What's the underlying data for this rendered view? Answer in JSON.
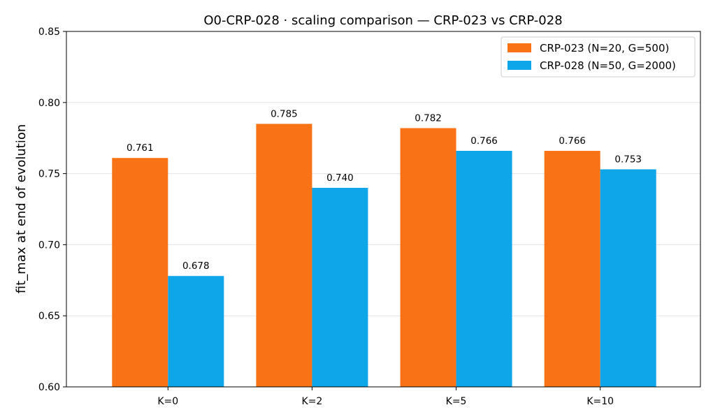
{
  "chart_data": {
    "type": "bar",
    "title": "O0-CRP-028 · scaling comparison — CRP-023 vs CRP-028",
    "xlabel": "",
    "ylabel": "fit_max at end of evolution",
    "categories": [
      "K=0",
      "K=2",
      "K=5",
      "K=10"
    ],
    "ylim": [
      0.6,
      0.85
    ],
    "yticks": [
      0.6,
      0.65,
      0.7,
      0.75,
      0.8,
      0.85
    ],
    "ytick_labels": [
      "0.60",
      "0.65",
      "0.70",
      "0.75",
      "0.80",
      "0.85"
    ],
    "grid": "y",
    "legend_position": "top-right",
    "series": [
      {
        "name": "CRP-023 (N=20, G=500)",
        "color": "#f97316",
        "values": [
          0.761,
          0.785,
          0.782,
          0.766
        ],
        "labels": [
          "0.761",
          "0.785",
          "0.782",
          "0.766"
        ]
      },
      {
        "name": "CRP-028 (N=50, G=2000)",
        "color": "#0ea5e9",
        "values": [
          0.678,
          0.74,
          0.766,
          0.753
        ],
        "labels": [
          "0.678",
          "0.740",
          "0.766",
          "0.753"
        ]
      }
    ]
  }
}
